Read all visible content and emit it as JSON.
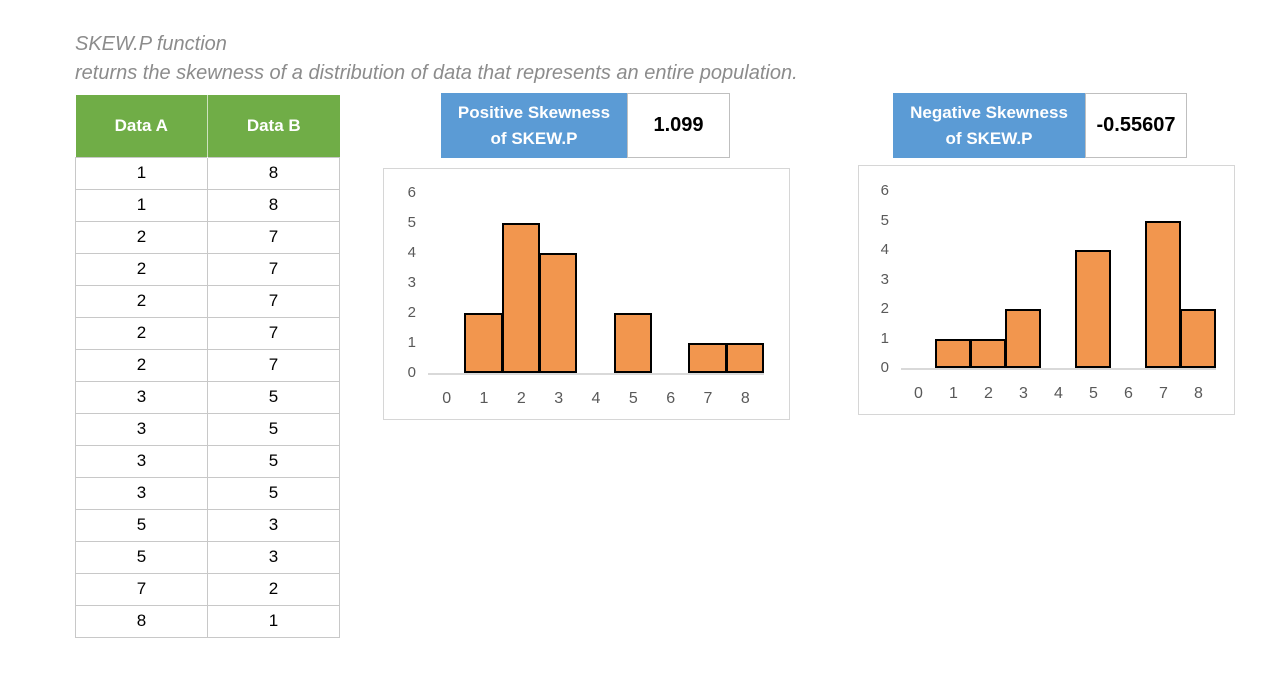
{
  "page": {
    "title_line1": "SKEW.P function",
    "title_line2": "returns the skewness of a distribution of data that represents an entire population."
  },
  "colors": {
    "header_green": "#70AD47",
    "header_blue": "#5B9BD5",
    "bar_fill": "#F2964E",
    "bar_border": "#000000",
    "axis_text": "#595959",
    "grid_line": "#D9D9D9",
    "table_border": "#C8C8C8",
    "title_gray": "#8C8C8C"
  },
  "table": {
    "headers": [
      "Data A",
      "Data B"
    ],
    "rows": [
      [
        1,
        8
      ],
      [
        1,
        8
      ],
      [
        2,
        7
      ],
      [
        2,
        7
      ],
      [
        2,
        7
      ],
      [
        2,
        7
      ],
      [
        2,
        7
      ],
      [
        3,
        5
      ],
      [
        3,
        5
      ],
      [
        3,
        5
      ],
      [
        3,
        5
      ],
      [
        5,
        3
      ],
      [
        5,
        3
      ],
      [
        7,
        2
      ],
      [
        8,
        1
      ]
    ]
  },
  "panels": [
    {
      "label_line1": "Positive Skewness",
      "label_line2": "of SKEW.P",
      "value": "1.099"
    },
    {
      "label_line1": "Negative Skewness",
      "label_line2": "of SKEW.P",
      "value": "-0.55607"
    }
  ],
  "chart_data": [
    {
      "type": "bar",
      "title": "Positive Skewness of SKEW.P",
      "skewness_value": 1.099,
      "categories": [
        0,
        1,
        2,
        3,
        4,
        5,
        6,
        7,
        8
      ],
      "values": [
        0,
        2,
        5,
        4,
        0,
        2,
        0,
        1,
        1
      ],
      "xlabel": "",
      "ylabel": "",
      "ylim": [
        0,
        6
      ],
      "yticks": [
        0,
        1,
        2,
        3,
        4,
        5,
        6
      ],
      "grid": false,
      "legend": "none",
      "gap_width": 0
    },
    {
      "type": "bar",
      "title": "Negative Skewness of SKEW.P",
      "skewness_value": -0.55607,
      "categories": [
        0,
        1,
        2,
        3,
        4,
        5,
        6,
        7,
        8
      ],
      "values": [
        0,
        1,
        1,
        2,
        0,
        4,
        0,
        5,
        2
      ],
      "xlabel": "",
      "ylabel": "",
      "ylim": [
        0,
        6
      ],
      "yticks": [
        0,
        1,
        2,
        3,
        4,
        5,
        6
      ],
      "grid": false,
      "legend": "none",
      "gap_width": 0
    }
  ]
}
